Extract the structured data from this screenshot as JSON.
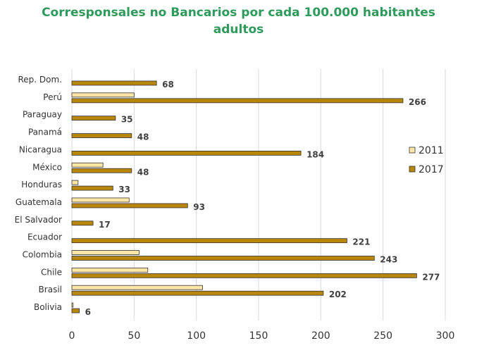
{
  "chart_data": {
    "type": "bar",
    "orientation": "horizontal",
    "title_lines": [
      "Corresponsales no Bancarios por cada 100.000 habitantes",
      "adultos"
    ],
    "categories": [
      "Rep. Dom.",
      "Perú",
      "Paraguay",
      "Panamá",
      "Nicaragua",
      "México",
      "Honduras",
      "Guatemala",
      "El Salvador",
      "Ecuador",
      "Colombia",
      "Chile",
      "Brasil",
      "Bolivia"
    ],
    "series": [
      {
        "name": "2011",
        "color": "#fde6a6",
        "values": [
          null,
          50,
          null,
          null,
          null,
          25,
          5,
          46,
          null,
          null,
          54,
          61,
          105,
          1
        ]
      },
      {
        "name": "2017",
        "color": "#b8860b",
        "values": [
          68,
          266,
          35,
          48,
          184,
          48,
          33,
          93,
          17,
          221,
          243,
          277,
          202,
          6
        ]
      }
    ],
    "data_labels_series": "2017",
    "xlim": [
      0,
      300
    ],
    "xticks": [
      0,
      50,
      100,
      150,
      200,
      250,
      300
    ],
    "grid": "vertical",
    "legend": "right"
  }
}
